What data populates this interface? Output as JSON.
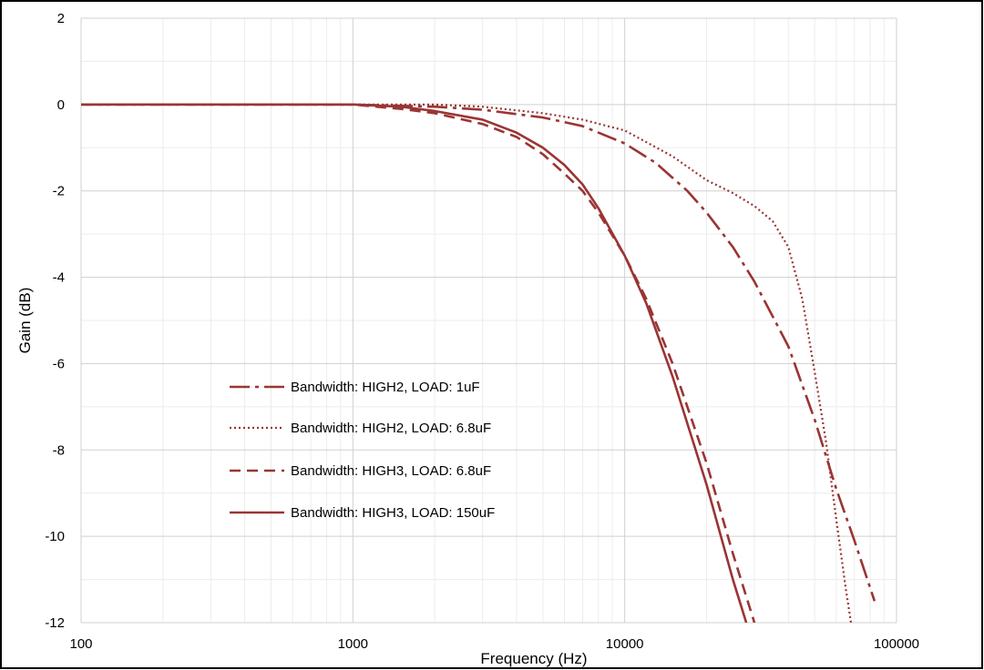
{
  "chart_data": {
    "type": "line",
    "title": "",
    "xlabel": "Frequency (Hz)",
    "ylabel": "Gain (dB)",
    "x_scale": "log",
    "xlim": [
      100,
      100000
    ],
    "ylim": [
      -12,
      2
    ],
    "x_ticks": [
      100,
      1000,
      10000,
      100000
    ],
    "x_tick_labels": [
      "100",
      "1000",
      "10000",
      "100000"
    ],
    "y_ticks": [
      2,
      0,
      -2,
      -4,
      -6,
      -8,
      -10,
      -12
    ],
    "y_tick_labels": [
      "2",
      "0",
      "-2",
      "-4",
      "-6",
      "-8",
      "-10",
      "-12"
    ],
    "grid": true,
    "legend_position": "left",
    "series_color": "#9b3434",
    "series": [
      {
        "name": "Bandwidth: HIGH2, LOAD: 1uF",
        "style": "dash-dot",
        "x": [
          100,
          500,
          1000,
          2000,
          3000,
          5000,
          7000,
          10000,
          13000,
          17000,
          20000,
          25000,
          30000,
          40000,
          50000,
          60000,
          70000,
          83000
        ],
        "y": [
          0,
          0,
          0,
          -0.05,
          -0.12,
          -0.3,
          -0.5,
          -0.9,
          -1.35,
          -2.0,
          -2.5,
          -3.3,
          -4.1,
          -5.6,
          -7.3,
          -8.9,
          -10.1,
          -11.5
        ]
      },
      {
        "name": "Bandwidth: HIGH2, LOAD: 6.8uF",
        "style": "dotted",
        "x": [
          100,
          500,
          1000,
          2000,
          3000,
          5000,
          7000,
          10000,
          15000,
          20000,
          25000,
          30000,
          35000,
          40000,
          45000,
          50000,
          55000,
          60000,
          65000,
          68000
        ],
        "y": [
          0,
          0,
          0,
          0,
          -0.05,
          -0.2,
          -0.35,
          -0.6,
          -1.2,
          -1.75,
          -2.05,
          -2.35,
          -2.7,
          -3.3,
          -4.5,
          -6.2,
          -7.8,
          -9.6,
          -11.2,
          -12
        ]
      },
      {
        "name": "Bandwidth: HIGH3, LOAD: 6.8uF",
        "style": "dashed",
        "x": [
          100,
          500,
          1000,
          1500,
          2000,
          3000,
          4000,
          5000,
          6000,
          7000,
          8000,
          10000,
          12000,
          15000,
          20000,
          25000,
          30000
        ],
        "y": [
          0,
          0,
          0,
          -0.1,
          -0.2,
          -0.45,
          -0.75,
          -1.15,
          -1.6,
          -2.0,
          -2.5,
          -3.5,
          -4.5,
          -6.0,
          -8.3,
          -10.4,
          -12
        ]
      },
      {
        "name": "Bandwidth: HIGH3, LOAD: 150uF",
        "style": "solid",
        "x": [
          100,
          500,
          1000,
          1500,
          2000,
          3000,
          4000,
          5000,
          6000,
          7000,
          8000,
          10000,
          12000,
          15000,
          20000,
          25000,
          28000
        ],
        "y": [
          0,
          0,
          0,
          -0.05,
          -0.15,
          -0.35,
          -0.65,
          -1.0,
          -1.4,
          -1.85,
          -2.4,
          -3.5,
          -4.6,
          -6.3,
          -8.8,
          -11.0,
          -12
        ]
      }
    ]
  }
}
